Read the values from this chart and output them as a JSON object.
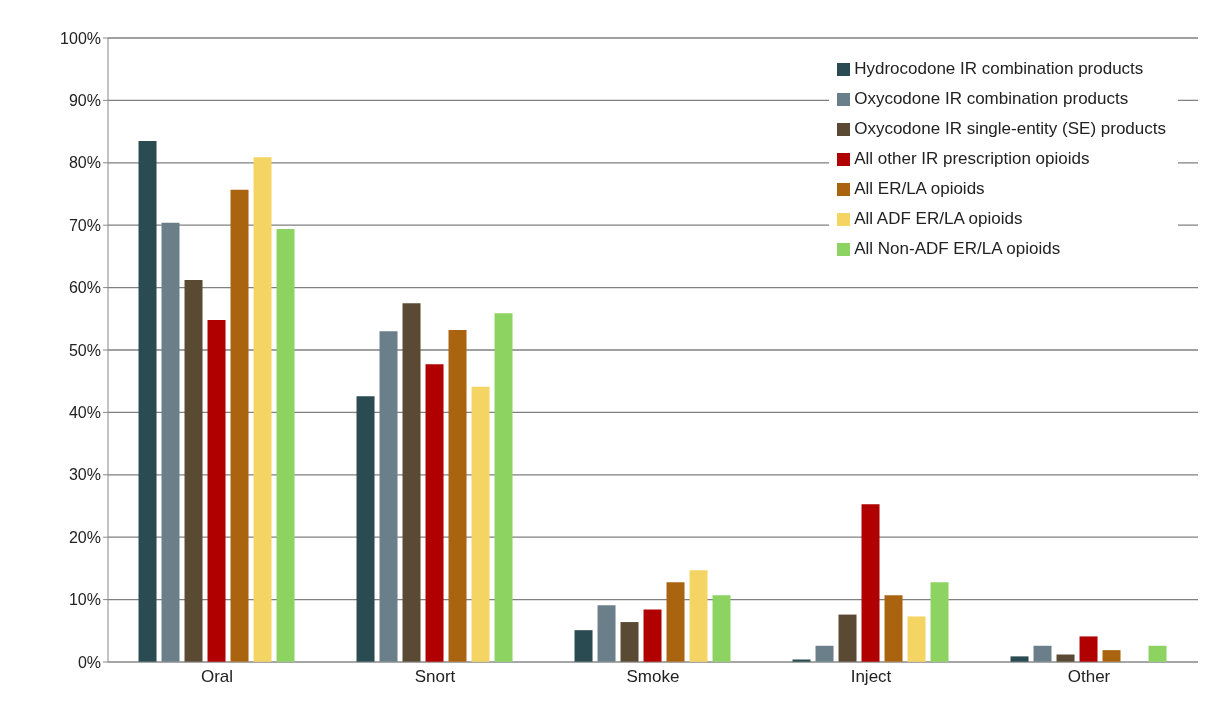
{
  "chart_data": {
    "type": "bar",
    "categories": [
      "Oral",
      "Snort",
      "Smoke",
      "Inject",
      "Other"
    ],
    "series": [
      {
        "name": "Hydrocodone IR combination products",
        "color": "#294b51",
        "values": [
          83.5,
          42.6,
          5.1,
          0.4,
          0.9
        ]
      },
      {
        "name": "Oxycodone IR combination products",
        "color": "#6a7f8a",
        "values": [
          70.4,
          53.0,
          9.1,
          2.6,
          2.6
        ]
      },
      {
        "name": "Oxycodone IR single-entity (SE) products",
        "color": "#5b4a33",
        "values": [
          61.2,
          57.5,
          6.4,
          7.6,
          1.2
        ]
      },
      {
        "name": "All other IR prescription opioids",
        "color": "#b00000",
        "values": [
          54.8,
          47.7,
          8.4,
          25.3,
          4.1
        ]
      },
      {
        "name": "All ER/LA opioids",
        "color": "#aa6410",
        "values": [
          75.7,
          53.2,
          12.8,
          10.7,
          1.9
        ]
      },
      {
        "name": "All ADF ER/LA opioids",
        "color": "#f4d462",
        "values": [
          80.9,
          44.1,
          14.7,
          7.3,
          0
        ]
      },
      {
        "name": "All Non-ADF ER/LA opioids",
        "color": "#8dd362",
        "values": [
          69.4,
          55.9,
          10.7,
          12.8,
          2.6
        ]
      }
    ],
    "ylim": [
      0,
      100
    ],
    "yticks": [
      {
        "value": 0,
        "label": "0%"
      },
      {
        "value": 10,
        "label": "10%"
      },
      {
        "value": 20,
        "label": "20%"
      },
      {
        "value": 30,
        "label": "30%"
      },
      {
        "value": 40,
        "label": "40%"
      },
      {
        "value": 50,
        "label": "50%"
      },
      {
        "value": 60,
        "label": "60%"
      },
      {
        "value": 70,
        "label": "70%"
      },
      {
        "value": 80,
        "label": "80%"
      },
      {
        "value": 90,
        "label": "90%"
      },
      {
        "value": 100,
        "label": "100%"
      }
    ],
    "grid": "y",
    "legend": "top right"
  }
}
